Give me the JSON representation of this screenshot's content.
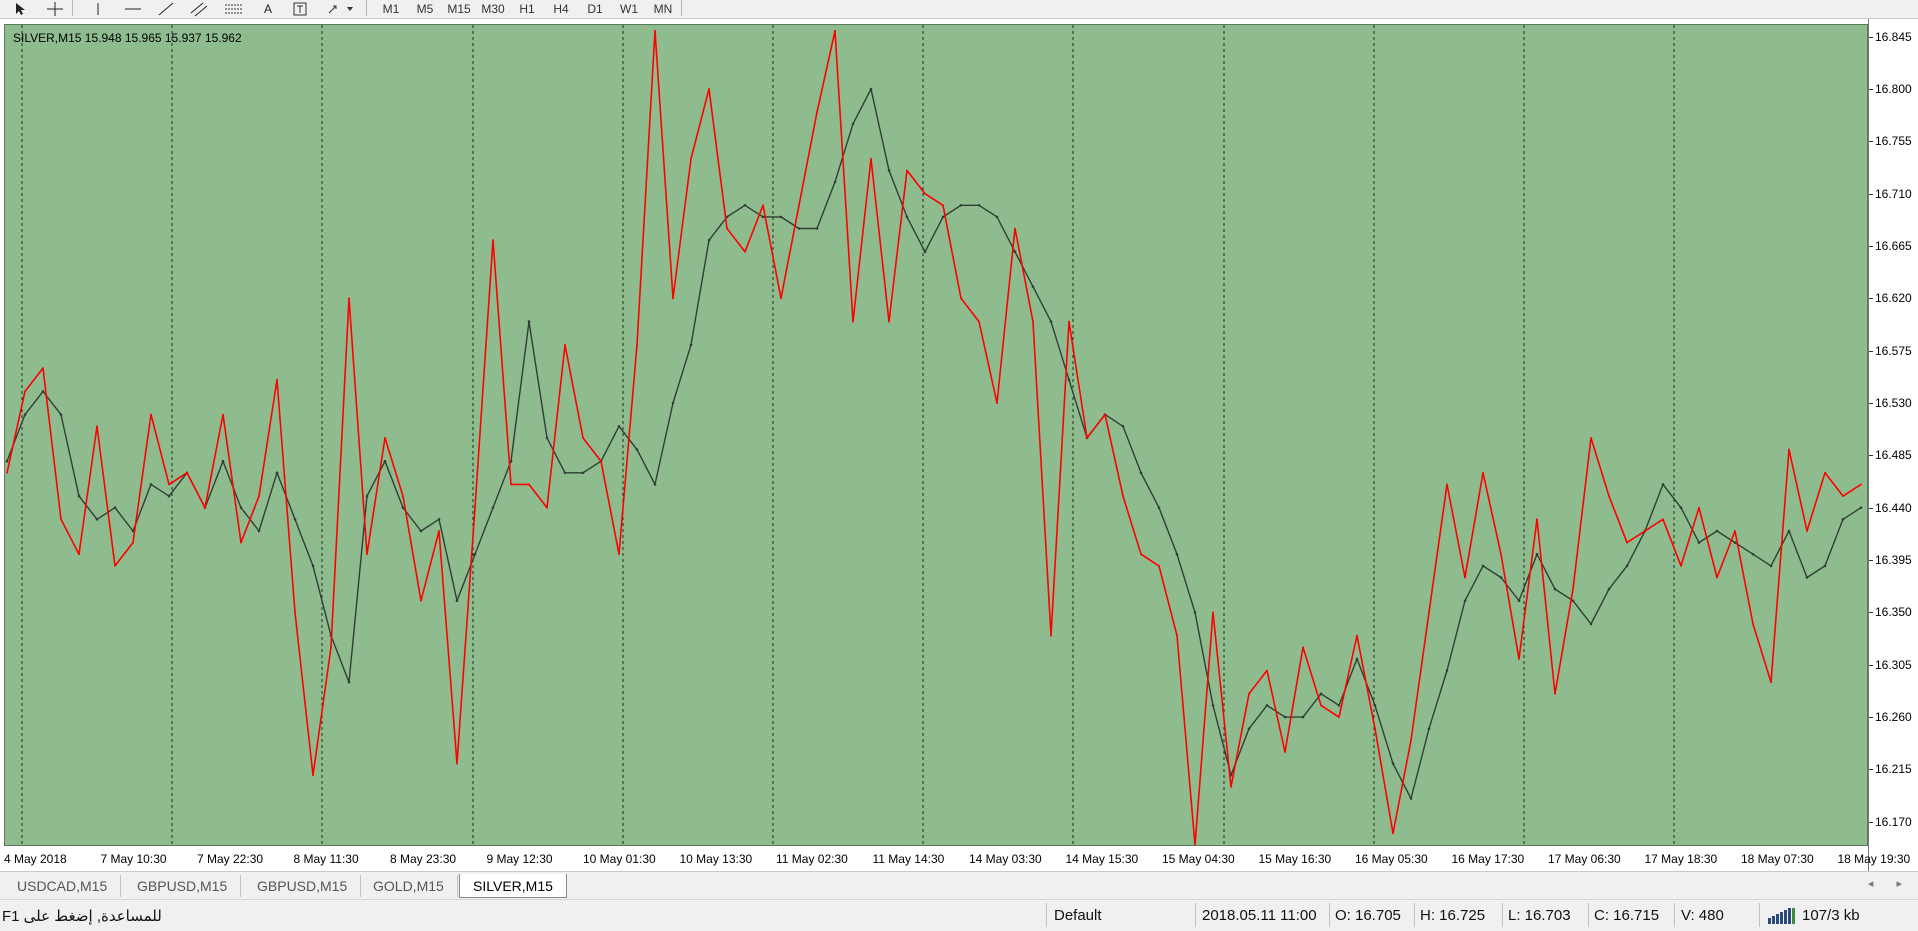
{
  "toolbar": {
    "tool_icons": [
      "cursor-icon",
      "crosshair-icon",
      "vertical-line-icon",
      "horizontal-line-icon",
      "trendline-icon",
      "equidistant-channel-icon",
      "fibonacci-icon",
      "text-icon",
      "text-label-icon",
      "arrows-icon"
    ],
    "text_tool": "A",
    "timeframes": [
      "M1",
      "M5",
      "M15",
      "M30",
      "H1",
      "H4",
      "D1",
      "W1",
      "MN"
    ]
  },
  "chart": {
    "caption": "SILVER,M15  15.948 15.965 15.937 15.962",
    "background": "#8fbc8f",
    "price_labels": [
      "16.845",
      "16.800",
      "16.755",
      "16.710",
      "16.665",
      "16.620",
      "16.575",
      "16.530",
      "16.485",
      "16.440",
      "16.395",
      "16.350",
      "16.305",
      "16.260",
      "16.215",
      "16.170"
    ],
    "time_labels": [
      "4 May 2018",
      "7 May 10:30",
      "7 May 22:30",
      "8 May 11:30",
      "8 May 23:30",
      "9 May 12:30",
      "10 May 01:30",
      "10 May 13:30",
      "11 May 02:30",
      "11 May 14:30",
      "14 May 03:30",
      "14 May 15:30",
      "15 May 04:30",
      "15 May 16:30",
      "16 May 05:30",
      "16 May 17:30",
      "17 May 06:30",
      "17 May 18:30",
      "18 May 07:30",
      "18 May 19:30"
    ]
  },
  "chart_data": {
    "type": "line",
    "series": [
      {
        "color": "#2f3f34",
        "values": [
          16.48,
          16.52,
          16.54,
          16.52,
          16.45,
          16.43,
          16.44,
          16.42,
          16.46,
          16.45,
          16.47,
          16.44,
          16.48,
          16.44,
          16.42,
          16.47,
          16.43,
          16.39,
          16.33,
          16.29,
          16.45,
          16.48,
          16.44,
          16.42,
          16.43,
          16.36,
          16.4,
          16.44,
          16.48,
          16.6,
          16.5,
          16.47,
          16.47,
          16.48,
          16.51,
          16.49,
          16.46,
          16.53,
          16.58,
          16.67,
          16.69,
          16.7,
          16.69,
          16.69,
          16.68,
          16.68,
          16.72,
          16.77,
          16.8,
          16.73,
          16.69,
          16.66,
          16.69,
          16.7,
          16.7,
          16.69,
          16.66,
          16.63,
          16.6,
          16.55,
          16.5,
          16.52,
          16.51,
          16.47,
          16.44,
          16.4,
          16.35,
          16.27,
          16.21,
          16.25,
          16.27,
          16.26,
          16.26,
          16.28,
          16.27,
          16.31,
          16.27,
          16.22,
          16.19,
          16.25,
          16.3,
          16.36,
          16.39,
          16.38,
          16.36,
          16.4,
          16.37,
          16.36,
          16.34,
          16.37,
          16.39,
          16.42,
          16.46,
          16.44,
          16.41,
          16.42,
          16.41,
          16.4,
          16.39,
          16.42,
          16.38,
          16.39,
          16.43,
          16.44
        ]
      },
      {
        "color": "#ff0000",
        "values": [
          16.47,
          16.54,
          16.56,
          16.43,
          16.4,
          16.51,
          16.39,
          16.41,
          16.52,
          16.46,
          16.47,
          16.44,
          16.52,
          16.41,
          16.45,
          16.55,
          16.35,
          16.21,
          16.32,
          16.62,
          16.4,
          16.5,
          16.45,
          16.36,
          16.42,
          16.22,
          16.44,
          16.67,
          16.46,
          16.46,
          16.44,
          16.58,
          16.5,
          16.48,
          16.4,
          16.58,
          16.85,
          16.62,
          16.74,
          16.8,
          16.68,
          16.66,
          16.7,
          16.62,
          16.7,
          16.78,
          16.85,
          16.6,
          16.74,
          16.6,
          16.73,
          16.71,
          16.7,
          16.62,
          16.6,
          16.53,
          16.68,
          16.6,
          16.33,
          16.6,
          16.5,
          16.52,
          16.45,
          16.4,
          16.39,
          16.33,
          16.15,
          16.35,
          16.2,
          16.28,
          16.3,
          16.23,
          16.32,
          16.27,
          16.26,
          16.33,
          16.25,
          16.16,
          16.24,
          16.35,
          16.46,
          16.38,
          16.47,
          16.4,
          16.31,
          16.43,
          16.28,
          16.37,
          16.5,
          16.45,
          16.41,
          16.42,
          16.43,
          16.39,
          16.44,
          16.38,
          16.42,
          16.34,
          16.29,
          16.49,
          16.42,
          16.47,
          16.45,
          16.46
        ]
      }
    ],
    "ylim": [
      16.15,
      16.855
    ],
    "grid": "vertical dashed"
  },
  "tabs": [
    "USDCAD,M15",
    "GBPUSD,M15",
    "GBPUSD,M15",
    "GOLD,M15",
    "SILVER,M15"
  ],
  "active_tab": "SILVER,M15",
  "tab_arrows": "◂ ▸",
  "status": {
    "help": "للمساعدة, إضغط على  F1",
    "profile": "Default",
    "datetime": "2018.05.11 11:00",
    "open": "O: 16.705",
    "high": "H: 16.725",
    "low": "L: 16.703",
    "close": "C: 16.715",
    "volume": "V: 480",
    "traffic": "107/3 kb"
  }
}
